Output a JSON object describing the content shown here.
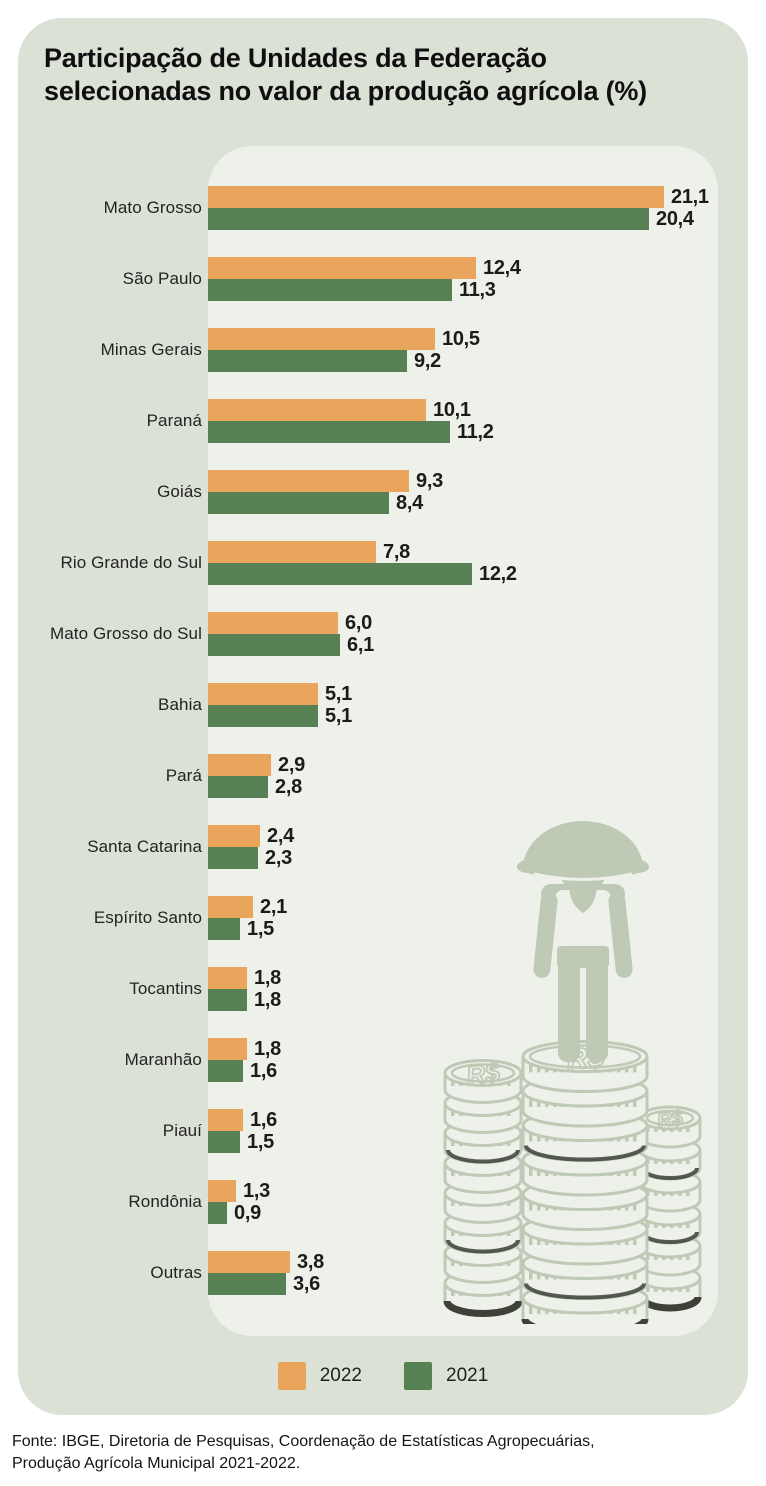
{
  "header": {
    "title_line1": "Participação de Unidades da Federação",
    "title_line2": "selecionadas no valor da produção agrícola (%)"
  },
  "chart_data": {
    "type": "bar",
    "orientation": "horizontal",
    "title": "Participação de Unidades da Federação selecionadas no valor da produção agrícola (%)",
    "unit": "%",
    "decimal_separator": ",",
    "value_labels": true,
    "grid": false,
    "legend_position": "bottom",
    "xlim": [
      0,
      21.1
    ],
    "categories": [
      "Mato Grosso",
      "São Paulo",
      "Minas Gerais",
      "Paraná",
      "Goiás",
      "Rio Grande do Sul",
      "Mato Grosso do Sul",
      "Bahia",
      "Pará",
      "Santa Catarina",
      "Espírito Santo",
      "Tocantins",
      "Maranhão",
      "Piauí",
      "Rondônia",
      "Outras"
    ],
    "series": [
      {
        "name": "2022",
        "color": "#eaa55c",
        "values": [
          21.1,
          12.4,
          10.5,
          10.1,
          9.3,
          7.8,
          6.0,
          5.1,
          2.9,
          2.4,
          2.1,
          1.8,
          1.8,
          1.6,
          1.3,
          3.8
        ]
      },
      {
        "name": "2021",
        "color": "#588055",
        "values": [
          20.4,
          11.3,
          9.2,
          11.2,
          8.4,
          12.2,
          6.1,
          5.1,
          2.8,
          2.3,
          1.5,
          1.8,
          1.6,
          1.5,
          0.9,
          3.6
        ]
      }
    ]
  },
  "legend": {
    "items": [
      {
        "label": "2022",
        "color": "#eaa55c"
      },
      {
        "label": "2021",
        "color": "#588055"
      }
    ]
  },
  "footer": {
    "source_line1": "Fonte: IBGE, Diretoria de Pesquisas, Coordenação de Estatísticas Agropecuárias,",
    "source_line2": "Produção Agrícola Municipal 2021-2022."
  },
  "illustration": {
    "description": "farmer standing on stacks of coins",
    "currency_symbol": "R$"
  },
  "colors": {
    "bar_2022": "#eaa55c",
    "bar_2021": "#588055",
    "card_bg": "#dce1d6",
    "panel_bg": "#eef1ea",
    "illustration": "#bfcab6",
    "shadow": "#3d4138"
  }
}
